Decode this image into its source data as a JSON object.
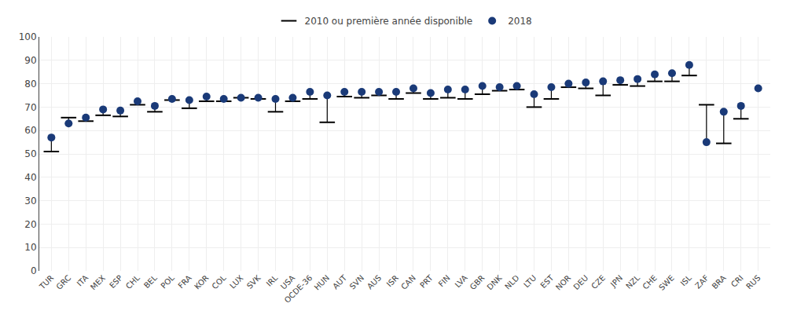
{
  "chart_data": {
    "type": "dot",
    "categories": [
      "TUR",
      "GRC",
      "ITA",
      "MEX",
      "ESP",
      "CHL",
      "BEL",
      "POL",
      "FRA",
      "KOR",
      "COL",
      "LUX",
      "SVK",
      "IRL",
      "USA",
      "OCDE-36",
      "HUN",
      "AUT",
      "SVN",
      "AUS",
      "ISR",
      "CAN",
      "PRT",
      "FIN",
      "LVA",
      "GBR",
      "DNK",
      "NLD",
      "LTU",
      "EST",
      "NOR",
      "DEU",
      "CZE",
      "JPN",
      "NZL",
      "CHE",
      "SWE",
      "ISL",
      "ZAF",
      "BRA",
      "CRI",
      "RUS"
    ],
    "series": [
      {
        "name": "2010 ou première année disponible",
        "color": "#000000",
        "marker": "cap",
        "values": [
          51.0,
          65.5,
          64.0,
          66.5,
          66.0,
          71.0,
          68.0,
          73.0,
          69.5,
          72.5,
          72.5,
          74.0,
          73.5,
          68.0,
          72.5,
          73.5,
          63.5,
          74.5,
          74.0,
          75.0,
          73.5,
          76.0,
          73.5,
          74.0,
          73.5,
          75.5,
          77.0,
          77.5,
          70.0,
          73.5,
          78.5,
          78.0,
          75.0,
          79.5,
          79.0,
          81.0,
          81.0,
          83.5,
          71.0,
          54.5,
          65.0,
          null
        ]
      },
      {
        "name": "2018",
        "color": "#1a3a78",
        "marker": "circle",
        "values": [
          57.0,
          63.0,
          65.5,
          69.0,
          68.5,
          72.5,
          70.5,
          73.5,
          73.0,
          74.5,
          73.5,
          74.0,
          74.0,
          73.5,
          74.0,
          76.5,
          75.0,
          76.5,
          76.5,
          76.5,
          76.5,
          78.0,
          76.0,
          77.5,
          77.5,
          79.0,
          78.5,
          79.0,
          75.5,
          78.5,
          80.0,
          80.5,
          81.0,
          81.5,
          82.0,
          84.0,
          84.5,
          88.0,
          55.0,
          68.0,
          70.5,
          78.0
        ]
      }
    ],
    "ylim": [
      0,
      100
    ],
    "yticks": [
      0,
      10,
      20,
      30,
      40,
      50,
      60,
      70,
      80,
      90,
      100
    ],
    "grid": true,
    "legend": "top"
  }
}
